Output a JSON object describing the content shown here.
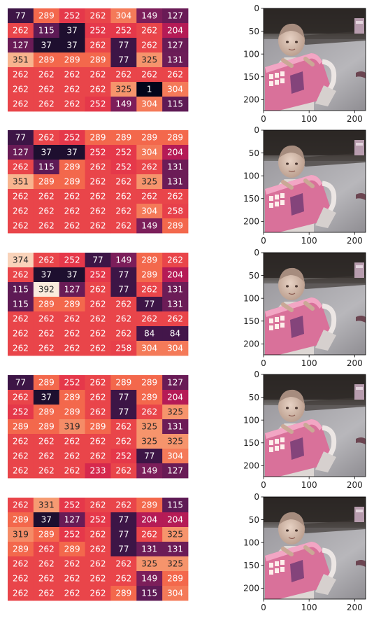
{
  "chart_data": [
    {
      "type": "heatmap",
      "cmap": "rocket",
      "vmin": 1,
      "vmax": 392,
      "values": [
        [
          77,
          289,
          252,
          262,
          304,
          149,
          127
        ],
        [
          262,
          115,
          37,
          252,
          252,
          262,
          204
        ],
        [
          127,
          37,
          37,
          262,
          77,
          262,
          127
        ],
        [
          351,
          289,
          289,
          289,
          77,
          325,
          131
        ],
        [
          262,
          262,
          262,
          262,
          262,
          262,
          262
        ],
        [
          262,
          262,
          262,
          262,
          325,
          1,
          304
        ],
        [
          262,
          262,
          262,
          252,
          149,
          304,
          115
        ]
      ]
    },
    {
      "type": "image",
      "content": "child-in-pink-cart",
      "xticks": [
        "0",
        "100",
        "200"
      ],
      "yticks": [
        "0",
        "50",
        "100",
        "150",
        "200"
      ]
    },
    {
      "type": "heatmap",
      "cmap": "rocket",
      "vmin": 1,
      "vmax": 392,
      "values": [
        [
          77,
          262,
          252,
          289,
          289,
          289,
          289
        ],
        [
          127,
          37,
          37,
          252,
          252,
          304,
          204
        ],
        [
          262,
          115,
          289,
          262,
          252,
          262,
          131
        ],
        [
          351,
          289,
          289,
          262,
          262,
          325,
          131
        ],
        [
          262,
          262,
          262,
          262,
          262,
          262,
          262
        ],
        [
          262,
          262,
          262,
          262,
          262,
          304,
          258
        ],
        [
          262,
          262,
          262,
          262,
          262,
          149,
          289
        ]
      ]
    },
    {
      "type": "image",
      "content": "child-in-pink-cart",
      "xticks": [
        "0",
        "100",
        "200"
      ],
      "yticks": [
        "0",
        "50",
        "100",
        "150",
        "200"
      ]
    },
    {
      "type": "heatmap",
      "cmap": "rocket",
      "vmin": 1,
      "vmax": 392,
      "values": [
        [
          374,
          262,
          252,
          77,
          149,
          289,
          262
        ],
        [
          262,
          37,
          37,
          252,
          77,
          289,
          204
        ],
        [
          115,
          392,
          127,
          262,
          77,
          262,
          131
        ],
        [
          115,
          289,
          289,
          262,
          262,
          77,
          131
        ],
        [
          262,
          262,
          262,
          262,
          262,
          262,
          262
        ],
        [
          262,
          262,
          262,
          262,
          262,
          84,
          84
        ],
        [
          262,
          262,
          262,
          262,
          258,
          304,
          304
        ]
      ]
    },
    {
      "type": "image",
      "content": "child-in-pink-cart",
      "xticks": [
        "0",
        "100",
        "200"
      ],
      "yticks": [
        "0",
        "50",
        "100",
        "150",
        "200"
      ]
    },
    {
      "type": "heatmap",
      "cmap": "rocket",
      "vmin": 1,
      "vmax": 392,
      "values": [
        [
          77,
          289,
          252,
          262,
          289,
          289,
          127
        ],
        [
          262,
          37,
          289,
          262,
          77,
          289,
          204
        ],
        [
          252,
          289,
          289,
          262,
          77,
          262,
          325
        ],
        [
          289,
          289,
          319,
          289,
          262,
          325,
          131
        ],
        [
          262,
          262,
          262,
          262,
          262,
          325,
          325
        ],
        [
          262,
          262,
          262,
          262,
          252,
          77,
          304
        ],
        [
          262,
          262,
          262,
          233,
          262,
          149,
          127
        ]
      ]
    },
    {
      "type": "image",
      "content": "child-in-pink-cart",
      "xticks": [
        "0",
        "100",
        "200"
      ],
      "yticks": [
        "0",
        "50",
        "100",
        "150",
        "200"
      ]
    },
    {
      "type": "heatmap",
      "cmap": "rocket",
      "vmin": 1,
      "vmax": 392,
      "values": [
        [
          262,
          331,
          252,
          262,
          262,
          289,
          115
        ],
        [
          289,
          37,
          127,
          252,
          77,
          204,
          204
        ],
        [
          319,
          289,
          252,
          262,
          77,
          262,
          325
        ],
        [
          289,
          262,
          289,
          262,
          77,
          131,
          131
        ],
        [
          262,
          262,
          262,
          262,
          262,
          325,
          325
        ],
        [
          262,
          262,
          262,
          262,
          262,
          149,
          289
        ],
        [
          262,
          262,
          262,
          262,
          289,
          115,
          304
        ]
      ]
    },
    {
      "type": "image",
      "content": "child-in-pink-cart",
      "xticks": [
        "0",
        "100",
        "200"
      ],
      "yticks": [
        "0",
        "50",
        "100",
        "150",
        "200"
      ]
    }
  ]
}
